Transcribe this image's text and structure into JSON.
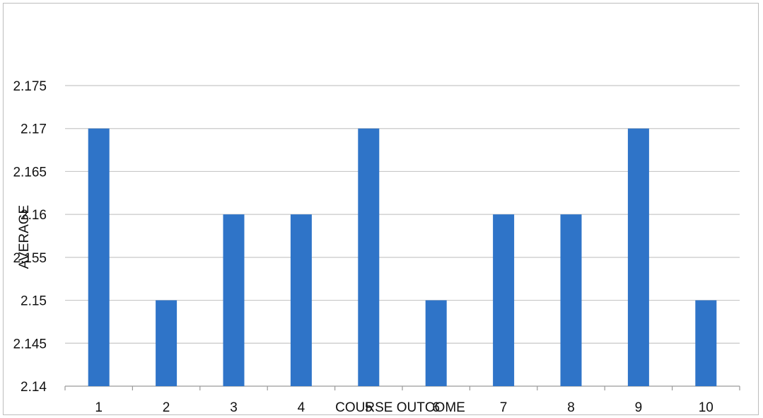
{
  "chart_data": {
    "type": "bar",
    "title": "",
    "xlabel": "COURSE OUTCOME",
    "ylabel": "AVERAGE",
    "categories": [
      "1",
      "2",
      "3",
      "4",
      "5",
      "6",
      "7",
      "8",
      "9",
      "10"
    ],
    "values": [
      2.17,
      2.15,
      2.16,
      2.16,
      2.17,
      2.15,
      2.16,
      2.16,
      2.17,
      2.15
    ],
    "ylim": [
      2.14,
      2.175
    ],
    "yticks": [
      "2.14",
      "2.145",
      "2.15",
      "2.155",
      "2.16",
      "2.165",
      "2.17",
      "2.175"
    ],
    "grid": true,
    "legend": "none",
    "bar_color": "#2f74c8",
    "grid_color": "#c8c8c8",
    "axis_color": "#9a9a9a"
  }
}
